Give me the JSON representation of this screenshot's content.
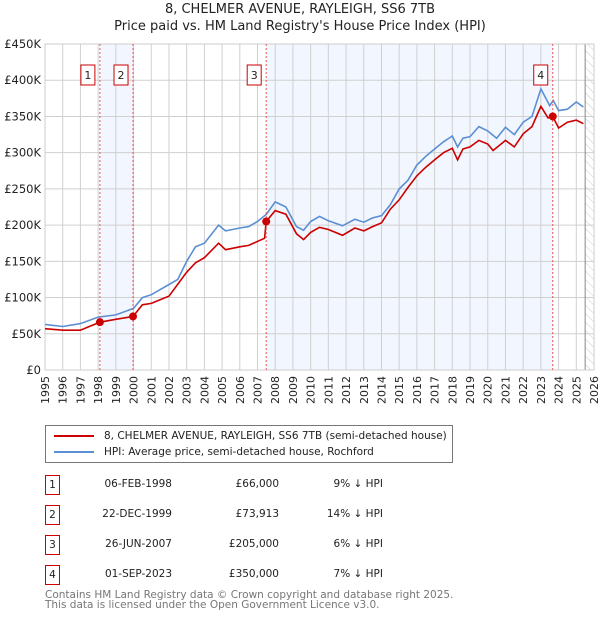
{
  "title_line1": "8, CHELMER AVENUE, RAYLEIGH, SS6 7TB",
  "title_line2": "Price paid vs. HM Land Registry's House Price Index (HPI)",
  "chart_data": {
    "type": "line",
    "xlim": [
      1995,
      2026
    ],
    "ylim": [
      0,
      450000
    ],
    "x_ticks": [
      "1995",
      "1996",
      "1997",
      "1998",
      "1999",
      "2000",
      "2001",
      "2002",
      "2003",
      "2004",
      "2005",
      "2006",
      "2007",
      "2008",
      "2009",
      "2010",
      "2011",
      "2012",
      "2013",
      "2014",
      "2015",
      "2016",
      "2017",
      "2018",
      "2019",
      "2020",
      "2021",
      "2022",
      "2023",
      "2024",
      "2025",
      "2026"
    ],
    "y_ticks": [
      {
        "value": 0,
        "label": "£0"
      },
      {
        "value": 50000,
        "label": "£50K"
      },
      {
        "value": 100000,
        "label": "£100K"
      },
      {
        "value": 150000,
        "label": "£150K"
      },
      {
        "value": 200000,
        "label": "£200K"
      },
      {
        "value": 250000,
        "label": "£250K"
      },
      {
        "value": 300000,
        "label": "£300K"
      },
      {
        "value": 350000,
        "label": "£350K"
      },
      {
        "value": 400000,
        "label": "£400K"
      },
      {
        "value": 450000,
        "label": "£450K"
      }
    ],
    "grid": true,
    "future_hatch_from": 2025.5,
    "shaded_ranges": [
      [
        1998.1,
        1999.97
      ],
      [
        2007.49,
        2023.67
      ]
    ],
    "series": [
      {
        "name": "8, CHELMER AVENUE, RAYLEIGH, SS6 7TB (semi-detached house)",
        "color": "#cc0000",
        "x": [
          1995,
          1996,
          1997,
          1997.5,
          1998.1,
          1999,
          1999.97,
          2000.5,
          2001,
          2002,
          2003,
          2003.5,
          2004,
          2004.8,
          2005.2,
          2006,
          2006.5,
          2007.4,
          2007.49,
          2008,
          2008.6,
          2009.2,
          2009.6,
          2010,
          2010.5,
          2011,
          2011.8,
          2012.5,
          2013,
          2013.5,
          2014,
          2014.5,
          2015,
          2015.5,
          2016,
          2016.5,
          2017,
          2017.5,
          2018,
          2018.3,
          2018.6,
          2019,
          2019.5,
          2020,
          2020.3,
          2021,
          2021.5,
          2022,
          2022.5,
          2023,
          2023.4,
          2023.67,
          2024,
          2024.5,
          2025,
          2025.4
        ],
        "y": [
          57000,
          55000,
          55000,
          60000,
          66000,
          70000,
          73913,
          90000,
          92000,
          102000,
          135000,
          148000,
          155000,
          175000,
          166000,
          170000,
          172000,
          182000,
          205000,
          220000,
          215000,
          188000,
          180000,
          190000,
          197000,
          194000,
          186000,
          196000,
          192000,
          198000,
          203000,
          222000,
          235000,
          252000,
          268000,
          280000,
          290000,
          300000,
          306000,
          290000,
          305000,
          308000,
          317000,
          312000,
          303000,
          317000,
          308000,
          326000,
          336000,
          364000,
          348000,
          350000,
          334000,
          342000,
          345000,
          340000
        ]
      },
      {
        "name": "HPI: Average price, semi-detached house, Rochford",
        "color": "#5b8fd4",
        "x": [
          1995,
          1996,
          1997,
          1998,
          1999,
          2000,
          2000.5,
          2001,
          2002,
          2002.5,
          2003,
          2003.5,
          2004,
          2004.8,
          2005.2,
          2006,
          2006.5,
          2007,
          2007.5,
          2008,
          2008.6,
          2009.2,
          2009.6,
          2010,
          2010.5,
          2011,
          2011.8,
          2012.5,
          2013,
          2013.5,
          2014,
          2014.5,
          2015,
          2015.5,
          2016,
          2016.5,
          2017,
          2017.5,
          2018,
          2018.3,
          2018.6,
          2019,
          2019.5,
          2020,
          2020.5,
          2021,
          2021.5,
          2022,
          2022.5,
          2023,
          2023.5,
          2023.7,
          2024,
          2024.5,
          2025,
          2025.4
        ],
        "y": [
          63000,
          60000,
          64000,
          73000,
          76000,
          85000,
          100000,
          104000,
          118000,
          125000,
          150000,
          170000,
          175000,
          200000,
          192000,
          196000,
          198000,
          205000,
          215000,
          232000,
          225000,
          198000,
          193000,
          205000,
          212000,
          206000,
          199000,
          208000,
          204000,
          210000,
          213000,
          228000,
          250000,
          262000,
          283000,
          295000,
          305000,
          315000,
          323000,
          308000,
          320000,
          322000,
          336000,
          330000,
          320000,
          335000,
          325000,
          342000,
          350000,
          388000,
          365000,
          372000,
          358000,
          360000,
          370000,
          363000
        ]
      }
    ],
    "sales": [
      {
        "id": "1",
        "x": 1998.1,
        "price": 66000
      },
      {
        "id": "2",
        "x": 1999.97,
        "price": 73913
      },
      {
        "id": "3",
        "x": 2007.49,
        "price": 205000
      },
      {
        "id": "4",
        "x": 2023.67,
        "price": 350000
      }
    ]
  },
  "legend": [
    {
      "label": "8, CHELMER AVENUE, RAYLEIGH, SS6 7TB (semi-detached house)",
      "color": "#cc0000"
    },
    {
      "label": "HPI: Average price, semi-detached house, Rochford",
      "color": "#5b8fd4"
    }
  ],
  "table": [
    {
      "num": "1",
      "date": "06-FEB-1998",
      "price": "£66,000",
      "hpi": "9% ↓ HPI"
    },
    {
      "num": "2",
      "date": "22-DEC-1999",
      "price": "£73,913",
      "hpi": "14% ↓ HPI"
    },
    {
      "num": "3",
      "date": "26-JUN-2007",
      "price": "£205,000",
      "hpi": "6% ↓ HPI"
    },
    {
      "num": "4",
      "date": "01-SEP-2023",
      "price": "£350,000",
      "hpi": "7% ↓ HPI"
    }
  ],
  "footer_line1": "Contains HM Land Registry data © Crown copyright and database right 2025.",
  "footer_line2": "This data is licensed under the Open Government Licence v3.0."
}
